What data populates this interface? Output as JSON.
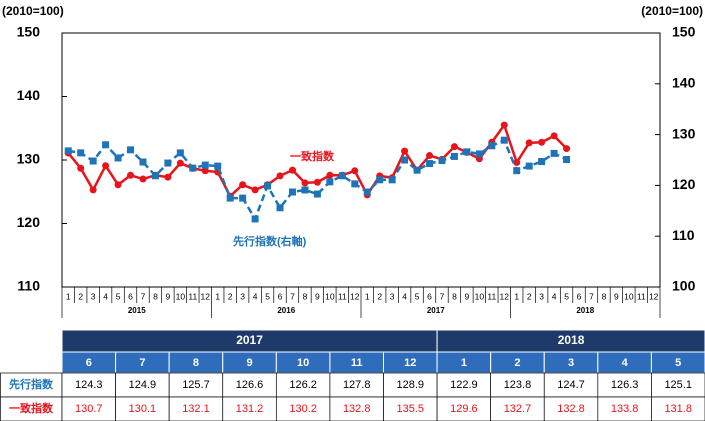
{
  "chart_data": {
    "type": "line",
    "annotations": [
      "(2010=100)",
      "(2010=100)"
    ],
    "categories": [
      "1",
      "2",
      "3",
      "4",
      "5",
      "6",
      "7",
      "8",
      "9",
      "10",
      "11",
      "12",
      "1",
      "2",
      "3",
      "4",
      "5",
      "6",
      "7",
      "8",
      "9",
      "10",
      "11",
      "12",
      "1",
      "2",
      "3",
      "4",
      "5",
      "6",
      "7",
      "8",
      "9",
      "10",
      "11",
      "12",
      "1",
      "2",
      "3",
      "4",
      "5",
      "6",
      "7",
      "8",
      "9",
      "10",
      "11",
      "12"
    ],
    "years": [
      "2015",
      "2016",
      "2017",
      "2018"
    ],
    "ylim": [
      110,
      150
    ],
    "yticks": [
      110,
      120,
      130,
      140,
      150
    ],
    "y2lim": [
      100,
      150
    ],
    "y2ticks": [
      100,
      110,
      120,
      130,
      140,
      150
    ],
    "series": [
      {
        "name": "一致指数",
        "color": "#e8141b",
        "values": [
          131.1,
          128.7,
          125.3,
          129.1,
          126.1,
          127.6,
          127.0,
          127.6,
          127.3,
          129.5,
          128.7,
          128.3,
          128.1,
          124.3,
          126.1,
          125.3,
          126.1,
          127.5,
          128.4,
          126.4,
          126.5,
          127.6,
          127.6,
          128.3,
          124.5,
          127.5,
          127.2,
          131.4,
          128.4,
          130.7,
          130.1,
          132.1,
          131.2,
          130.2,
          132.8,
          135.5,
          129.6,
          132.7,
          132.8,
          133.8,
          131.8,
          null,
          null,
          null,
          null,
          null,
          null,
          null
        ]
      },
      {
        "name": "先行指数(右軸)",
        "color": "#1f74b8",
        "axis": "y2",
        "values": [
          126.8,
          126.4,
          124.8,
          128.0,
          125.4,
          127.0,
          124.6,
          121.9,
          124.4,
          126.4,
          123.4,
          124.0,
          123.8,
          117.5,
          117.5,
          113.4,
          119.9,
          115.6,
          118.7,
          119.1,
          118.3,
          120.7,
          121.9,
          120.3,
          118.7,
          121.1,
          121.1,
          125.0,
          123.0,
          124.3,
          124.9,
          125.7,
          126.6,
          126.2,
          127.8,
          128.9,
          122.9,
          123.8,
          124.7,
          126.3,
          125.1,
          null,
          null,
          null,
          null,
          null,
          null,
          null
        ]
      }
    ]
  },
  "table": {
    "years": [
      {
        "year": "2017",
        "months": [
          "6",
          "7",
          "8",
          "9",
          "10",
          "11",
          "12"
        ]
      },
      {
        "year": "2018",
        "months": [
          "1",
          "2",
          "3",
          "4",
          "5"
        ]
      }
    ],
    "rows": [
      {
        "label": "先行指数"
      },
      {
        "label": "一致指数"
      }
    ]
  }
}
